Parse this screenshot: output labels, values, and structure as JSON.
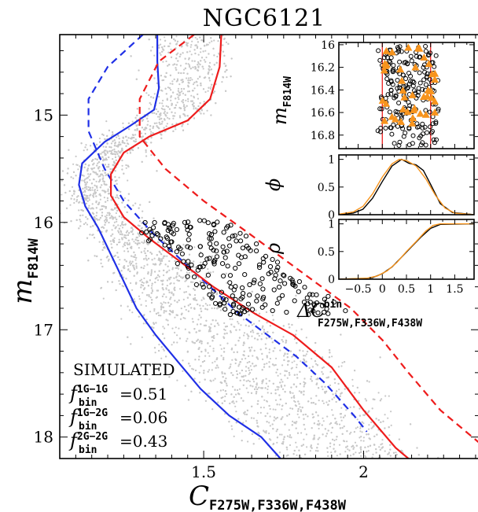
{
  "chart_data": [
    {
      "type": "scatter",
      "title": "NGC6121",
      "xlabel": "C",
      "xlabel_sub": "F275W,F336W,F438W",
      "ylabel": "m",
      "ylabel_sub": "F814W",
      "xlim": [
        1.05,
        2.36
      ],
      "ylim": [
        18.2,
        14.25
      ],
      "y_inverted": true,
      "x_ticks": [
        "1.5",
        "2"
      ],
      "x_tick_values": [
        1.5,
        2.0
      ],
      "y_ticks": [
        "15",
        "16",
        "17",
        "18"
      ],
      "y_tick_values": [
        15,
        16,
        17,
        18
      ],
      "annotation": {
        "heading": "SIMULATED",
        "rows": [
          {
            "f": "f",
            "sup": "1G−1G",
            "sub": "bin",
            "value": "=0.51"
          },
          {
            "f": "f",
            "sup": "1G−2G",
            "sub": "bin",
            "value": "=0.06"
          },
          {
            "f": "f",
            "sup": "2G−2G",
            "sub": "bin",
            "value": "=0.43"
          }
        ]
      },
      "colors": {
        "simulated_stars": "#c8c8c8",
        "first_gen": "#1f2fe6",
        "second_gen": "#ee1c1c",
        "selected": "#000000"
      },
      "series": [
        {
          "name": "1G fiducial",
          "style": "solid",
          "color": "#1f2fe6",
          "points": [
            [
              1.355,
              14.25
            ],
            [
              1.355,
              14.5
            ],
            [
              1.36,
              14.75
            ],
            [
              1.345,
              14.95
            ],
            [
              1.27,
              15.1
            ],
            [
              1.19,
              15.25
            ],
            [
              1.12,
              15.45
            ],
            [
              1.11,
              15.65
            ],
            [
              1.13,
              15.85
            ],
            [
              1.17,
              16.05
            ],
            [
              1.21,
              16.3
            ],
            [
              1.25,
              16.55
            ],
            [
              1.29,
              16.8
            ],
            [
              1.35,
              17.05
            ],
            [
              1.42,
              17.3
            ],
            [
              1.49,
              17.55
            ],
            [
              1.58,
              17.8
            ],
            [
              1.68,
              18.0
            ],
            [
              1.74,
              18.2
            ]
          ]
        },
        {
          "name": "1G binary fiducial",
          "style": "dashed",
          "color": "#1f2fe6",
          "points": [
            [
              1.31,
              14.25
            ],
            [
              1.2,
              14.55
            ],
            [
              1.14,
              14.85
            ],
            [
              1.14,
              15.15
            ],
            [
              1.19,
              15.5
            ],
            [
              1.25,
              15.8
            ],
            [
              1.34,
              16.1
            ],
            [
              1.43,
              16.35
            ],
            [
              1.52,
              16.6
            ],
            [
              1.61,
              16.85
            ],
            [
              1.7,
              17.05
            ],
            [
              1.79,
              17.25
            ],
            [
              1.88,
              17.5
            ],
            [
              1.97,
              17.8
            ],
            [
              2.01,
              17.95
            ]
          ]
        },
        {
          "name": "2G fiducial",
          "style": "solid",
          "color": "#ee1c1c",
          "points": [
            [
              1.555,
              14.25
            ],
            [
              1.55,
              14.55
            ],
            [
              1.52,
              14.85
            ],
            [
              1.45,
              15.05
            ],
            [
              1.33,
              15.2
            ],
            [
              1.25,
              15.35
            ],
            [
              1.21,
              15.55
            ],
            [
              1.21,
              15.75
            ],
            [
              1.25,
              15.95
            ],
            [
              1.33,
              16.15
            ],
            [
              1.42,
              16.35
            ],
            [
              1.53,
              16.6
            ],
            [
              1.66,
              16.85
            ],
            [
              1.78,
              17.05
            ],
            [
              1.9,
              17.35
            ],
            [
              2.0,
              17.75
            ],
            [
              2.1,
              18.1
            ],
            [
              2.14,
              18.2
            ]
          ]
        },
        {
          "name": "2G binary fiducial",
          "style": "dashed",
          "color": "#ee1c1c",
          "points": [
            [
              1.47,
              14.25
            ],
            [
              1.36,
              14.5
            ],
            [
              1.3,
              14.85
            ],
            [
              1.3,
              15.2
            ],
            [
              1.38,
              15.5
            ],
            [
              1.5,
              15.8
            ],
            [
              1.64,
              16.1
            ],
            [
              1.8,
              16.45
            ],
            [
              1.96,
              16.8
            ],
            [
              2.06,
              17.1
            ],
            [
              2.14,
              17.4
            ],
            [
              2.24,
              17.75
            ],
            [
              2.36,
              18.05
            ]
          ]
        }
      ]
    },
    {
      "type": "scatter",
      "inset": "top",
      "ylabel": "m",
      "ylabel_sub": "F814W",
      "xlim": [
        -0.9,
        1.9
      ],
      "ylim": [
        16.92,
        15.98
      ],
      "y_inverted": true,
      "y_ticks": [
        "16",
        "16.2",
        "16.4",
        "16.6",
        "16.8"
      ],
      "y_tick_values": [
        16.0,
        16.2,
        16.4,
        16.6,
        16.8
      ],
      "vertical_lines": [
        0,
        1
      ],
      "series": [
        {
          "name": "observed",
          "marker": "open-circle",
          "color": "#000000"
        },
        {
          "name": "simulated binaries",
          "marker": "triangle",
          "color": "#f7941d"
        }
      ]
    },
    {
      "type": "line",
      "inset": "middle",
      "ylabel": "ϕ",
      "xlim": [
        -0.9,
        1.9
      ],
      "ylim": [
        0,
        1.08
      ],
      "y_ticks": [
        "0",
        "0.5",
        "1"
      ],
      "y_tick_values": [
        0,
        0.5,
        1
      ],
      "series": [
        {
          "name": "observed",
          "color": "#000000",
          "points": [
            [
              -0.9,
              0.0
            ],
            [
              -0.6,
              0.03
            ],
            [
              -0.4,
              0.1
            ],
            [
              -0.2,
              0.3
            ],
            [
              0.0,
              0.6
            ],
            [
              0.2,
              0.88
            ],
            [
              0.4,
              1.0
            ],
            [
              0.55,
              0.93
            ],
            [
              0.7,
              0.9
            ],
            [
              0.85,
              0.8
            ],
            [
              1.0,
              0.55
            ],
            [
              1.2,
              0.2
            ],
            [
              1.45,
              0.04
            ],
            [
              1.9,
              0.0
            ]
          ]
        },
        {
          "name": "simulated",
          "color": "#f7941d",
          "points": [
            [
              -0.9,
              0.01
            ],
            [
              -0.6,
              0.05
            ],
            [
              -0.4,
              0.15
            ],
            [
              -0.2,
              0.38
            ],
            [
              0.0,
              0.68
            ],
            [
              0.2,
              0.92
            ],
            [
              0.35,
              1.0
            ],
            [
              0.5,
              0.98
            ],
            [
              0.7,
              0.88
            ],
            [
              0.9,
              0.65
            ],
            [
              1.1,
              0.35
            ],
            [
              1.3,
              0.12
            ],
            [
              1.5,
              0.03
            ],
            [
              1.9,
              0.0
            ]
          ]
        }
      ]
    },
    {
      "type": "line",
      "inset": "bottom",
      "ylabel": "ρ",
      "xlabel": "ΔC",
      "xlabel_sup": "bin",
      "xlabel_sub": "F275W,F336W,F438W",
      "xlim": [
        -0.9,
        1.9
      ],
      "ylim": [
        0,
        1.08
      ],
      "x_ticks": [
        "−0.5",
        "0",
        "0.5",
        "1",
        "1.5"
      ],
      "x_tick_values": [
        -0.5,
        0,
        0.5,
        1,
        1.5
      ],
      "y_ticks": [
        "0",
        "0.5",
        "1"
      ],
      "y_tick_values": [
        0,
        0.5,
        1
      ],
      "series": [
        {
          "name": "observed",
          "color": "#000000",
          "points": [
            [
              -0.9,
              0.0
            ],
            [
              -0.4,
              0.01
            ],
            [
              -0.2,
              0.03
            ],
            [
              0.0,
              0.1
            ],
            [
              0.2,
              0.22
            ],
            [
              0.4,
              0.4
            ],
            [
              0.6,
              0.58
            ],
            [
              0.8,
              0.76
            ],
            [
              1.0,
              0.92
            ],
            [
              1.2,
              0.99
            ],
            [
              1.9,
              1.0
            ]
          ]
        },
        {
          "name": "simulated",
          "color": "#f7941d",
          "points": [
            [
              -0.9,
              0.0
            ],
            [
              -0.3,
              0.02
            ],
            [
              -0.1,
              0.06
            ],
            [
              0.1,
              0.15
            ],
            [
              0.3,
              0.3
            ],
            [
              0.5,
              0.5
            ],
            [
              0.7,
              0.68
            ],
            [
              0.9,
              0.87
            ],
            [
              1.05,
              0.97
            ],
            [
              1.2,
              1.0
            ],
            [
              1.9,
              1.0
            ]
          ]
        }
      ]
    }
  ]
}
